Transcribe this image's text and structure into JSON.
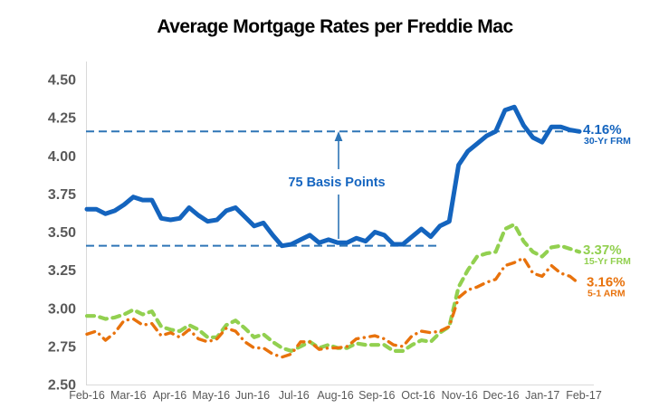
{
  "chart_data": {
    "type": "line",
    "title": "Average Mortgage Rates per Freddie Mac",
    "x_tick_labels": [
      "Feb-16",
      "Mar-16",
      "Apr-16",
      "May-16",
      "Jun-16",
      "Jul-16",
      "Aug-16",
      "Sep-16",
      "Oct-16",
      "Nov-16",
      "Dec-16",
      "Jan-17",
      "Feb-17"
    ],
    "x_frequency": "weekly",
    "ylabel": "",
    "xlabel": "",
    "ylim": [
      2.5,
      4.5
    ],
    "y_ticks": [
      "4.50",
      "4.25",
      "4.00",
      "3.75",
      "3.50",
      "3.25",
      "3.00",
      "2.75",
      "2.50"
    ],
    "grid": false,
    "series": [
      {
        "name": "30-Yr FRM",
        "end_label": "4.16%",
        "color": "#1464BE",
        "style": "solid",
        "values": [
          3.65,
          3.65,
          3.62,
          3.64,
          3.68,
          3.73,
          3.71,
          3.71,
          3.59,
          3.58,
          3.59,
          3.66,
          3.61,
          3.57,
          3.58,
          3.64,
          3.66,
          3.6,
          3.54,
          3.56,
          3.48,
          3.41,
          3.42,
          3.45,
          3.48,
          3.43,
          3.45,
          3.43,
          3.43,
          3.46,
          3.44,
          3.5,
          3.48,
          3.42,
          3.42,
          3.47,
          3.52,
          3.47,
          3.54,
          3.57,
          3.94,
          4.03,
          4.08,
          4.13,
          4.16,
          4.3,
          4.32,
          4.2,
          4.12,
          4.09,
          4.19,
          4.19,
          4.17,
          4.16
        ]
      },
      {
        "name": "15-Yr FRM",
        "end_label": "3.37%",
        "color": "#92D050",
        "style": "dashed",
        "values": [
          2.95,
          2.95,
          2.93,
          2.94,
          2.96,
          2.99,
          2.96,
          2.98,
          2.88,
          2.86,
          2.85,
          2.89,
          2.86,
          2.81,
          2.81,
          2.89,
          2.92,
          2.87,
          2.81,
          2.83,
          2.78,
          2.74,
          2.72,
          2.75,
          2.78,
          2.74,
          2.76,
          2.74,
          2.74,
          2.77,
          2.76,
          2.76,
          2.76,
          2.72,
          2.72,
          2.76,
          2.79,
          2.78,
          2.84,
          2.88,
          3.14,
          3.25,
          3.34,
          3.36,
          3.37,
          3.52,
          3.55,
          3.44,
          3.37,
          3.34,
          3.4,
          3.41,
          3.39,
          3.37
        ]
      },
      {
        "name": "5-1 ARM",
        "end_label": "3.16%",
        "color": "#E8720C",
        "style": "dash-dot",
        "values": [
          2.83,
          2.85,
          2.79,
          2.84,
          2.92,
          2.93,
          2.89,
          2.9,
          2.82,
          2.84,
          2.81,
          2.86,
          2.8,
          2.78,
          2.8,
          2.87,
          2.85,
          2.78,
          2.74,
          2.74,
          2.7,
          2.68,
          2.7,
          2.78,
          2.78,
          2.73,
          2.74,
          2.74,
          2.75,
          2.8,
          2.81,
          2.82,
          2.8,
          2.76,
          2.75,
          2.82,
          2.85,
          2.84,
          2.85,
          2.88,
          3.07,
          3.12,
          3.14,
          3.17,
          3.19,
          3.28,
          3.3,
          3.33,
          3.23,
          3.21,
          3.28,
          3.23,
          3.21,
          3.16
        ]
      }
    ],
    "annotations": {
      "label": "75 Basis Points",
      "upper_line_value": 4.16,
      "lower_line_value": 3.41,
      "line_style": "dashed",
      "line_color": "#2E75B6",
      "label_color": "#1565C0"
    }
  },
  "colors": {
    "axis_line": "#D9D9D9",
    "tick_text": "#595959",
    "title_text": "#000000",
    "background": "#FFFFFF"
  }
}
